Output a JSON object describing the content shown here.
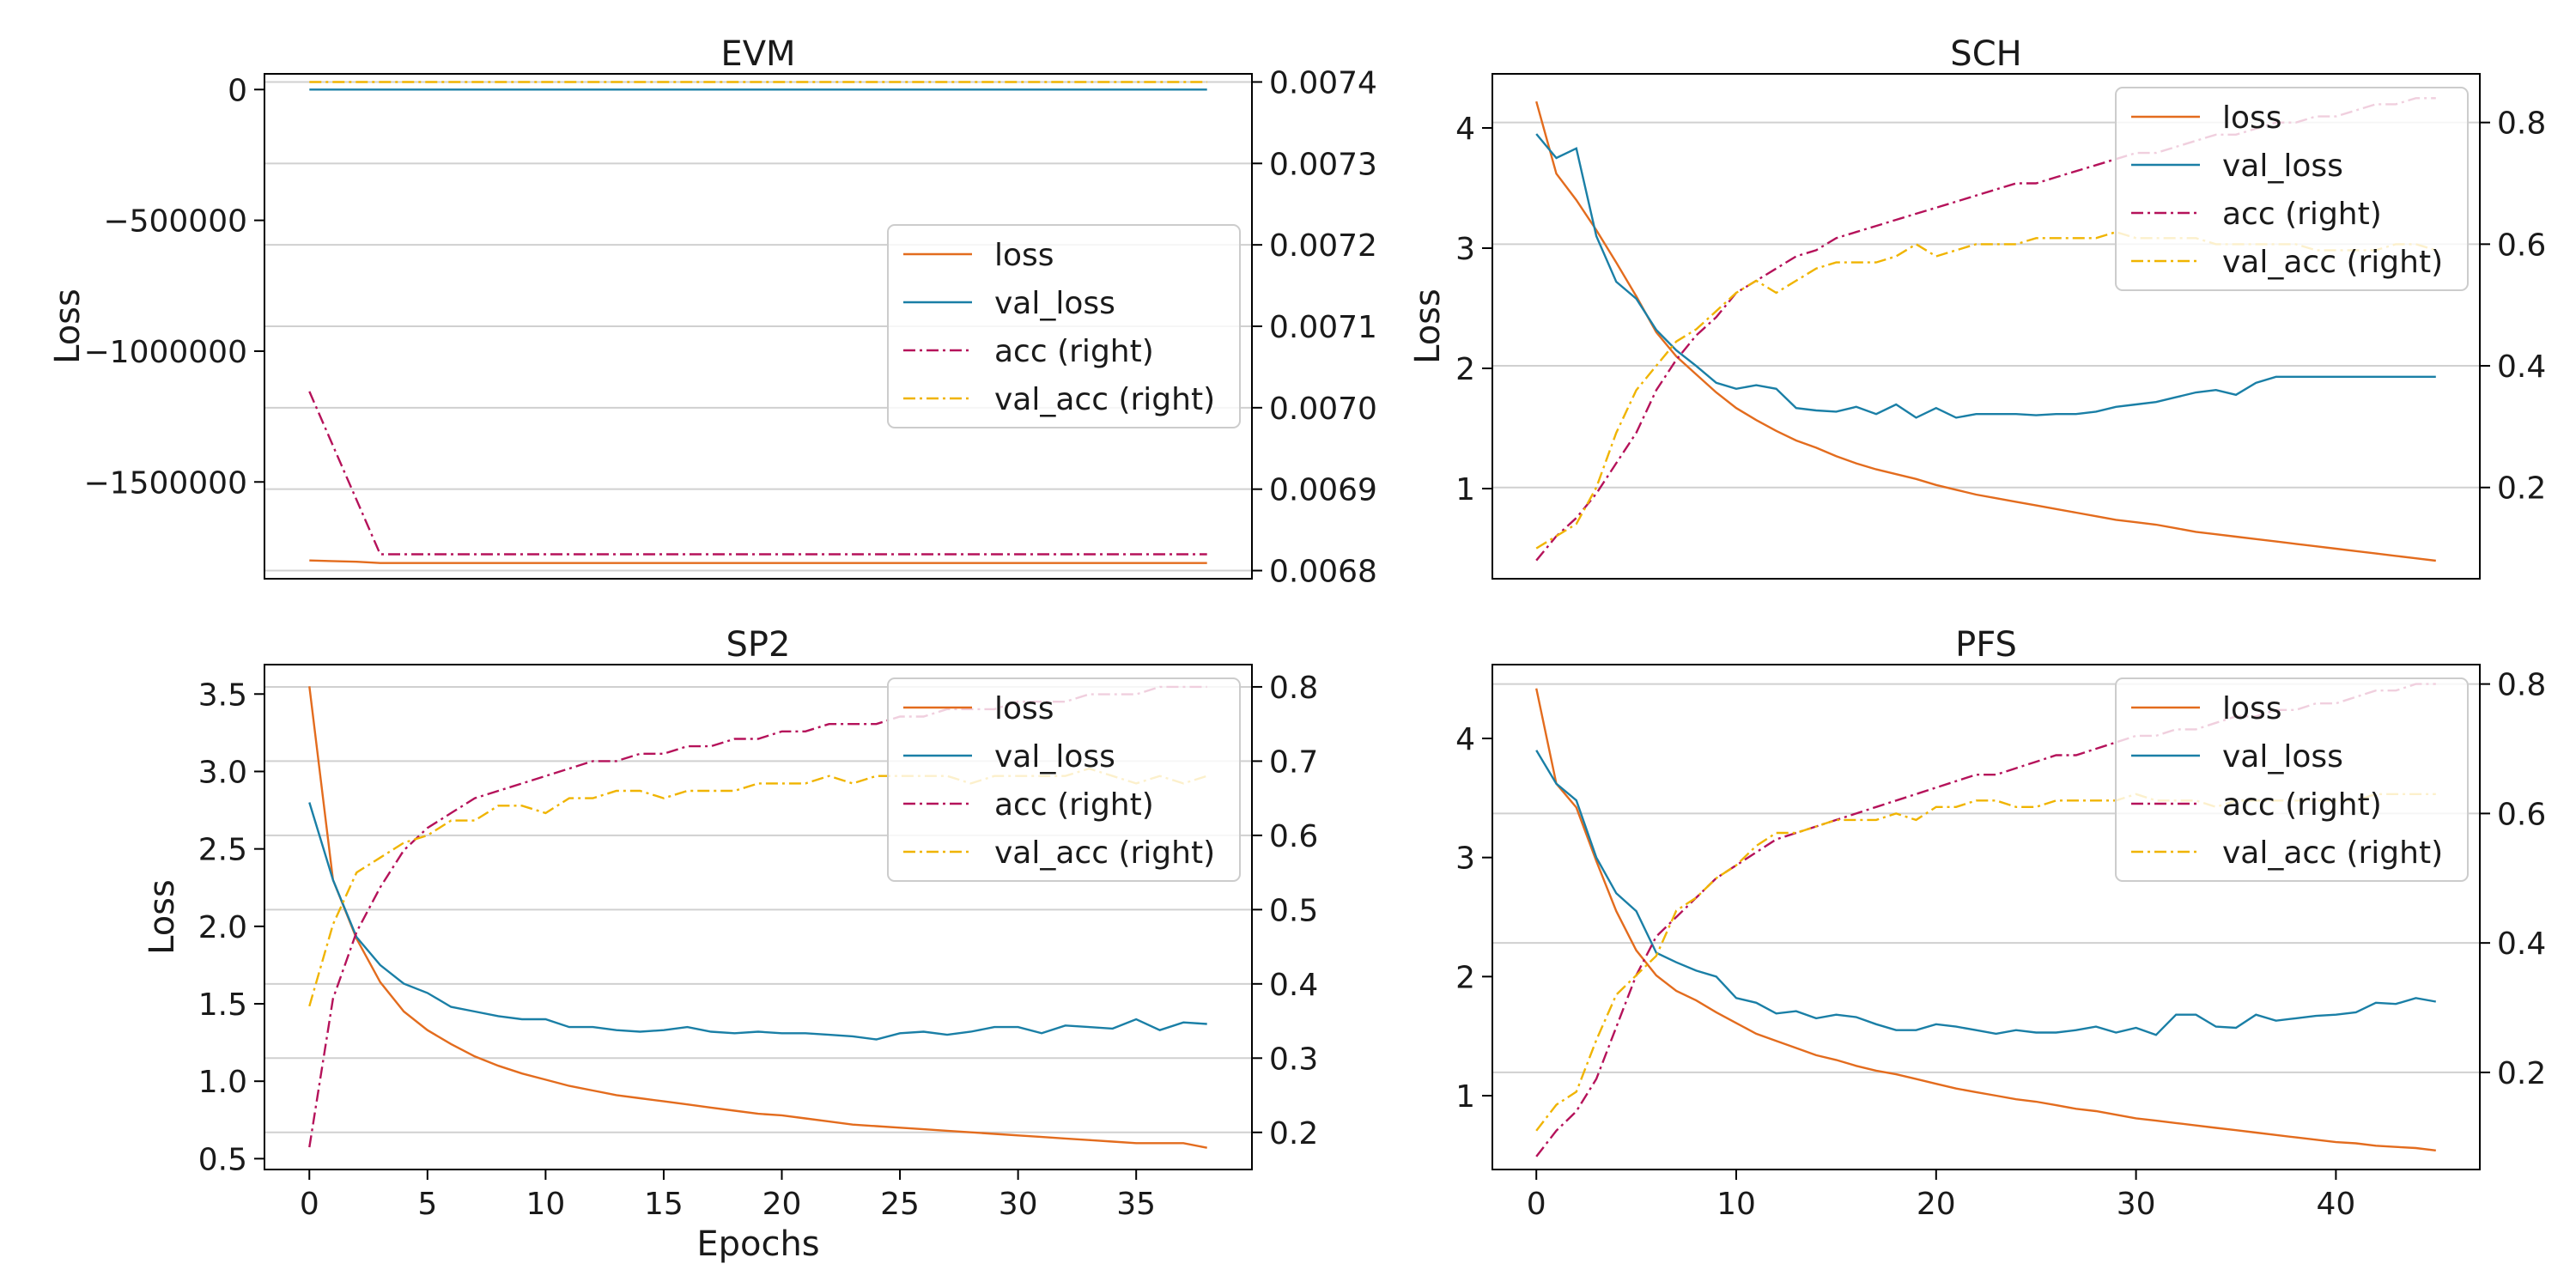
{
  "chart_data": [
    {
      "type": "line",
      "title": "EVM",
      "xlabel": "",
      "ylabel": "Loss",
      "x_ticks": [],
      "y_left_ticks": [
        0,
        -500000,
        -1000000,
        -1500000
      ],
      "y_left_tick_labels": [
        "0",
        "−500000",
        "−1000000",
        "−1500000"
      ],
      "y_left_range": [
        -1870000,
        60000
      ],
      "y_right_ticks": [
        0.0068,
        0.0069,
        0.007,
        0.0071,
        0.0072,
        0.0073,
        0.0074
      ],
      "y_right_tick_labels": [
        "0.0068",
        "0.0069",
        "0.0070",
        "0.0071",
        "0.0072",
        "0.0073",
        "0.0074"
      ],
      "y_right_range": [
        0.00679,
        0.00741
      ],
      "x_range": [
        -1.9,
        39.9
      ],
      "grid": "horizontal (right axis)",
      "legend_position": "center-right",
      "legend": [
        "loss",
        "val_loss",
        "acc (right)",
        "val_acc (right)"
      ],
      "series": [
        {
          "name": "loss",
          "axis": "left",
          "style": "solid",
          "color": "#e36c1e",
          "points": [
            [
              0,
              -1800000
            ],
            [
              2,
              -1805000
            ],
            [
              3,
              -1810000
            ],
            [
              38,
              -1810000
            ]
          ]
        },
        {
          "name": "val_loss",
          "axis": "left",
          "style": "solid",
          "color": "#1a7fa6",
          "points": [
            [
              0,
              0
            ],
            [
              38,
              0
            ]
          ]
        },
        {
          "name": "acc (right)",
          "axis": "right",
          "style": "dashdot",
          "color": "#b5125a",
          "points": [
            [
              0,
              0.00702
            ],
            [
              3,
              0.00682
            ],
            [
              38,
              0.00682
            ]
          ]
        },
        {
          "name": "val_acc (right)",
          "axis": "right",
          "style": "dashdot",
          "color": "#f0b400",
          "points": [
            [
              0,
              0.0074
            ],
            [
              38,
              0.0074
            ]
          ]
        }
      ]
    },
    {
      "type": "line",
      "title": "SCH",
      "xlabel": "",
      "ylabel": "Loss",
      "x_ticks": [],
      "y_left_ticks": [
        1,
        2,
        3,
        4
      ],
      "y_left_tick_labels": [
        "1",
        "2",
        "3",
        "4"
      ],
      "y_left_range": [
        0.25,
        4.45
      ],
      "y_right_ticks": [
        0.2,
        0.4,
        0.6,
        0.8
      ],
      "y_right_tick_labels": [
        "0.2",
        "0.4",
        "0.6",
        "0.8"
      ],
      "y_right_range": [
        0.05,
        0.88
      ],
      "x_range": [
        -2.2,
        47.2
      ],
      "grid": "horizontal (right axis)",
      "legend_position": "top-right",
      "legend": [
        "loss",
        "val_loss",
        "acc (right)",
        "val_acc (right)"
      ],
      "series": [
        {
          "name": "loss",
          "axis": "left",
          "style": "solid",
          "color": "#e36c1e",
          "values": [
            4.22,
            3.62,
            3.4,
            3.15,
            2.88,
            2.6,
            2.3,
            2.1,
            1.95,
            1.8,
            1.67,
            1.57,
            1.48,
            1.4,
            1.34,
            1.27,
            1.21,
            1.16,
            1.12,
            1.08,
            1.03,
            0.99,
            0.95,
            0.92,
            0.89,
            0.86,
            0.83,
            0.8,
            0.77,
            0.74,
            0.72,
            0.7,
            0.67,
            0.64,
            0.62,
            0.6,
            0.58,
            0.56,
            0.54,
            0.52,
            0.5,
            0.48,
            0.46,
            0.44,
            0.42,
            0.4
          ]
        },
        {
          "name": "val_loss",
          "axis": "left",
          "style": "solid",
          "color": "#1a7fa6",
          "values": [
            3.95,
            3.75,
            3.83,
            3.1,
            2.72,
            2.58,
            2.32,
            2.15,
            2.02,
            1.88,
            1.83,
            1.86,
            1.83,
            1.67,
            1.65,
            1.64,
            1.68,
            1.62,
            1.7,
            1.59,
            1.67,
            1.59,
            1.62,
            1.62,
            1.62,
            1.61,
            1.62,
            1.62,
            1.64,
            1.68,
            1.7,
            1.72,
            1.76,
            1.8,
            1.82,
            1.78,
            1.88,
            1.93,
            1.93,
            1.93,
            1.93,
            1.93,
            1.93,
            1.93,
            1.93,
            1.93
          ]
        },
        {
          "name": "acc (right)",
          "axis": "right",
          "style": "dashdot",
          "color": "#b5125a",
          "values": [
            0.08,
            0.12,
            0.15,
            0.19,
            0.24,
            0.29,
            0.36,
            0.41,
            0.45,
            0.48,
            0.52,
            0.54,
            0.56,
            0.58,
            0.59,
            0.61,
            0.62,
            0.63,
            0.64,
            0.65,
            0.66,
            0.67,
            0.68,
            0.69,
            0.7,
            0.7,
            0.71,
            0.72,
            0.73,
            0.74,
            0.75,
            0.75,
            0.76,
            0.77,
            0.78,
            0.78,
            0.79,
            0.8,
            0.8,
            0.81,
            0.81,
            0.82,
            0.83,
            0.83,
            0.84,
            0.84
          ]
        },
        {
          "name": "val_acc (right)",
          "axis": "right",
          "style": "dashdot",
          "color": "#f0b400",
          "values": [
            0.1,
            0.12,
            0.14,
            0.2,
            0.29,
            0.36,
            0.4,
            0.44,
            0.46,
            0.49,
            0.52,
            0.54,
            0.52,
            0.54,
            0.56,
            0.57,
            0.57,
            0.57,
            0.58,
            0.6,
            0.58,
            0.59,
            0.6,
            0.6,
            0.6,
            0.61,
            0.61,
            0.61,
            0.61,
            0.62,
            0.61,
            0.61,
            0.61,
            0.61,
            0.6,
            0.6,
            0.6,
            0.6,
            0.6,
            0.59,
            0.59,
            0.59,
            0.59,
            0.6,
            0.6,
            0.59
          ]
        }
      ]
    },
    {
      "type": "line",
      "title": "SP2",
      "xlabel": "Epochs",
      "ylabel": "Loss",
      "x_ticks": [
        0,
        5,
        10,
        15,
        20,
        25,
        30,
        35
      ],
      "y_left_ticks": [
        0.5,
        1.0,
        1.5,
        2.0,
        2.5,
        3.0,
        3.5
      ],
      "y_left_tick_labels": [
        "0.5",
        "1.0",
        "1.5",
        "2.0",
        "2.5",
        "3.0",
        "3.5"
      ],
      "y_left_range": [
        0.43,
        3.69
      ],
      "y_right_ticks": [
        0.2,
        0.3,
        0.4,
        0.5,
        0.6,
        0.7,
        0.8
      ],
      "y_right_tick_labels": [
        "0.2",
        "0.3",
        "0.4",
        "0.5",
        "0.6",
        "0.7",
        "0.8"
      ],
      "y_right_range": [
        0.15,
        0.83
      ],
      "x_range": [
        -1.9,
        39.9
      ],
      "grid": "horizontal (right axis)",
      "legend_position": "top-right",
      "legend": [
        "loss",
        "val_loss",
        "acc (right)",
        "val_acc (right)"
      ],
      "series": [
        {
          "name": "loss",
          "axis": "left",
          "style": "solid",
          "color": "#e36c1e",
          "values": [
            3.55,
            2.3,
            1.92,
            1.64,
            1.45,
            1.33,
            1.24,
            1.16,
            1.1,
            1.05,
            1.01,
            0.97,
            0.94,
            0.91,
            0.89,
            0.87,
            0.85,
            0.83,
            0.81,
            0.79,
            0.78,
            0.76,
            0.74,
            0.72,
            0.71,
            0.7,
            0.69,
            0.68,
            0.67,
            0.66,
            0.65,
            0.64,
            0.63,
            0.62,
            0.61,
            0.6,
            0.6,
            0.6,
            0.57
          ]
        },
        {
          "name": "val_loss",
          "axis": "left",
          "style": "solid",
          "color": "#1a7fa6",
          "values": [
            2.8,
            2.3,
            1.93,
            1.75,
            1.63,
            1.57,
            1.48,
            1.45,
            1.42,
            1.4,
            1.4,
            1.35,
            1.35,
            1.33,
            1.32,
            1.33,
            1.35,
            1.32,
            1.31,
            1.32,
            1.31,
            1.31,
            1.3,
            1.29,
            1.27,
            1.31,
            1.32,
            1.3,
            1.32,
            1.35,
            1.35,
            1.31,
            1.36,
            1.35,
            1.34,
            1.4,
            1.33,
            1.38,
            1.37
          ]
        },
        {
          "name": "acc (right)",
          "axis": "right",
          "style": "dashdot",
          "color": "#b5125a",
          "values": [
            0.18,
            0.38,
            0.47,
            0.53,
            0.58,
            0.61,
            0.63,
            0.65,
            0.66,
            0.67,
            0.68,
            0.69,
            0.7,
            0.7,
            0.71,
            0.71,
            0.72,
            0.72,
            0.73,
            0.73,
            0.74,
            0.74,
            0.75,
            0.75,
            0.75,
            0.76,
            0.76,
            0.77,
            0.77,
            0.77,
            0.78,
            0.78,
            0.78,
            0.79,
            0.79,
            0.79,
            0.8,
            0.8,
            0.8
          ]
        },
        {
          "name": "val_acc (right)",
          "axis": "right",
          "style": "dashdot",
          "color": "#f0b400",
          "values": [
            0.37,
            0.48,
            0.55,
            0.57,
            0.59,
            0.6,
            0.62,
            0.62,
            0.64,
            0.64,
            0.63,
            0.65,
            0.65,
            0.66,
            0.66,
            0.65,
            0.66,
            0.66,
            0.66,
            0.67,
            0.67,
            0.67,
            0.68,
            0.67,
            0.68,
            0.68,
            0.68,
            0.68,
            0.67,
            0.68,
            0.68,
            0.68,
            0.68,
            0.69,
            0.68,
            0.67,
            0.68,
            0.67,
            0.68
          ]
        }
      ]
    },
    {
      "type": "line",
      "title": "PFS",
      "xlabel": "",
      "ylabel": "",
      "x_ticks": [
        0,
        10,
        20,
        30,
        40
      ],
      "y_left_ticks": [
        1,
        2,
        3,
        4
      ],
      "y_left_tick_labels": [
        "1",
        "2",
        "3",
        "4"
      ],
      "y_left_range": [
        0.38,
        4.62
      ],
      "y_right_ticks": [
        0.2,
        0.4,
        0.6,
        0.8
      ],
      "y_right_tick_labels": [
        "0.2",
        "0.4",
        "0.6",
        "0.8"
      ],
      "y_right_range": [
        0.05,
        0.83
      ],
      "x_range": [
        -2.2,
        47.2
      ],
      "grid": "horizontal (right axis)",
      "legend_position": "top-right",
      "legend": [
        "loss",
        "val_loss",
        "acc (right)",
        "val_acc (right)"
      ],
      "series": [
        {
          "name": "loss",
          "axis": "left",
          "style": "solid",
          "color": "#e36c1e",
          "values": [
            4.42,
            3.62,
            3.42,
            2.97,
            2.55,
            2.22,
            2.01,
            1.88,
            1.8,
            1.7,
            1.61,
            1.52,
            1.46,
            1.4,
            1.34,
            1.3,
            1.25,
            1.21,
            1.18,
            1.14,
            1.1,
            1.06,
            1.03,
            1.0,
            0.97,
            0.95,
            0.92,
            0.89,
            0.87,
            0.84,
            0.81,
            0.79,
            0.77,
            0.75,
            0.73,
            0.71,
            0.69,
            0.67,
            0.65,
            0.63,
            0.61,
            0.6,
            0.58,
            0.57,
            0.56,
            0.54
          ]
        },
        {
          "name": "val_loss",
          "axis": "left",
          "style": "solid",
          "color": "#1a7fa6",
          "values": [
            3.9,
            3.62,
            3.48,
            3.0,
            2.7,
            2.55,
            2.2,
            2.12,
            2.05,
            2.0,
            1.82,
            1.78,
            1.69,
            1.71,
            1.65,
            1.68,
            1.66,
            1.6,
            1.55,
            1.55,
            1.6,
            1.58,
            1.55,
            1.52,
            1.55,
            1.53,
            1.53,
            1.55,
            1.58,
            1.53,
            1.57,
            1.51,
            1.68,
            1.68,
            1.58,
            1.57,
            1.68,
            1.63,
            1.65,
            1.67,
            1.68,
            1.7,
            1.78,
            1.77,
            1.82,
            1.79
          ]
        },
        {
          "name": "acc (right)",
          "axis": "right",
          "style": "dashdot",
          "color": "#b5125a",
          "values": [
            0.07,
            0.11,
            0.14,
            0.19,
            0.27,
            0.35,
            0.41,
            0.44,
            0.47,
            0.5,
            0.52,
            0.54,
            0.56,
            0.57,
            0.58,
            0.59,
            0.6,
            0.61,
            0.62,
            0.63,
            0.64,
            0.65,
            0.66,
            0.66,
            0.67,
            0.68,
            0.69,
            0.69,
            0.7,
            0.71,
            0.72,
            0.72,
            0.73,
            0.73,
            0.74,
            0.75,
            0.75,
            0.76,
            0.76,
            0.77,
            0.77,
            0.78,
            0.79,
            0.79,
            0.8,
            0.8
          ]
        },
        {
          "name": "val_acc (right)",
          "axis": "right",
          "style": "dashdot",
          "color": "#f0b400",
          "values": [
            0.11,
            0.15,
            0.17,
            0.25,
            0.32,
            0.35,
            0.38,
            0.45,
            0.47,
            0.5,
            0.52,
            0.55,
            0.57,
            0.57,
            0.58,
            0.59,
            0.59,
            0.59,
            0.6,
            0.59,
            0.61,
            0.61,
            0.62,
            0.62,
            0.61,
            0.61,
            0.62,
            0.62,
            0.62,
            0.62,
            0.63,
            0.62,
            0.62,
            0.62,
            0.61,
            0.62,
            0.62,
            0.62,
            0.62,
            0.62,
            0.62,
            0.62,
            0.63,
            0.63,
            0.63,
            0.63
          ]
        }
      ]
    }
  ]
}
